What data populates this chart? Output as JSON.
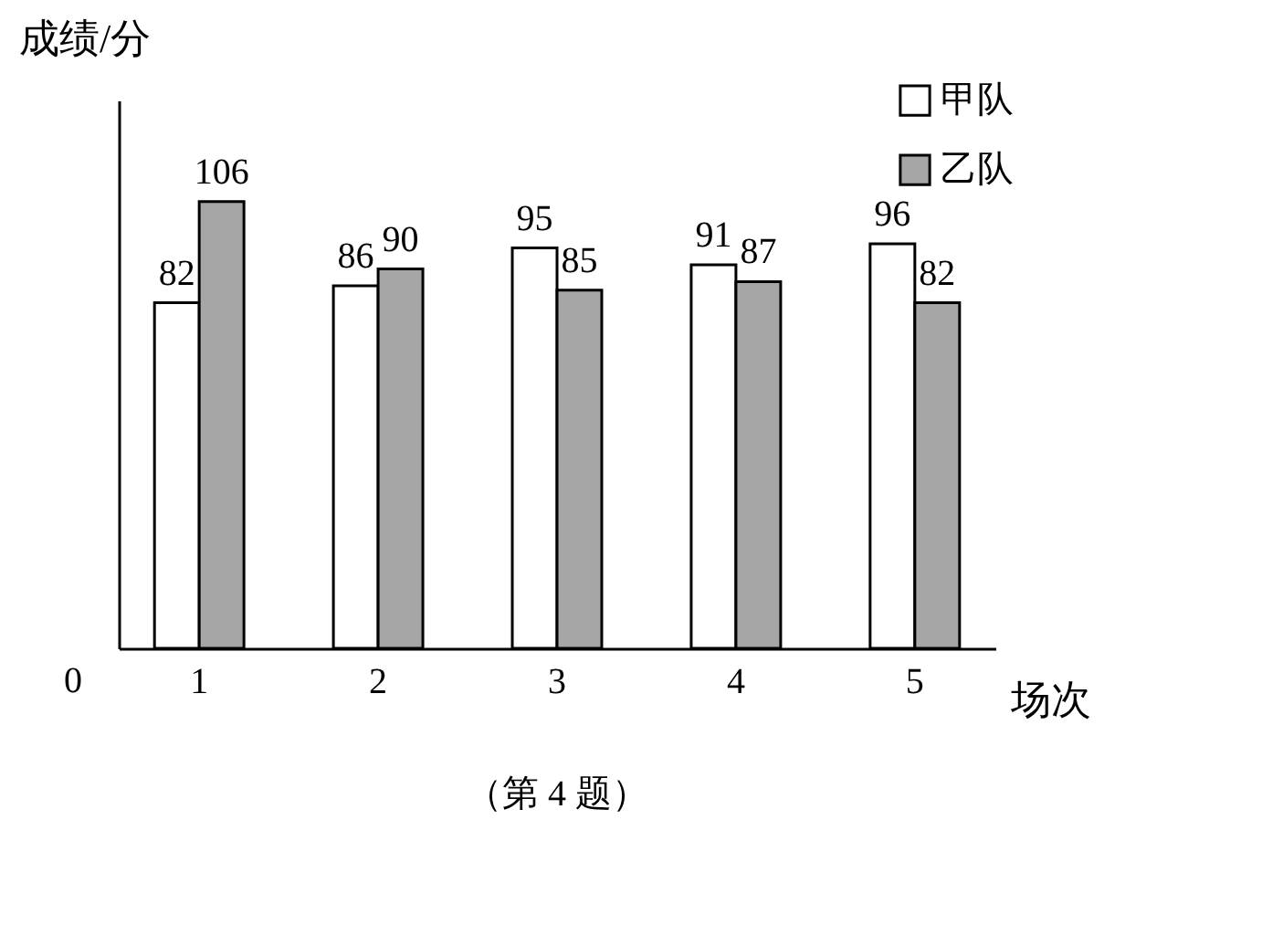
{
  "chart_data": {
    "type": "bar",
    "xlabel": "场次",
    "ylabel": "成绩/分",
    "categories": [
      "1",
      "2",
      "3",
      "4",
      "5"
    ],
    "series": [
      {
        "name": "甲队",
        "color": "#ffffff",
        "values": [
          82,
          86,
          95,
          91,
          96
        ]
      },
      {
        "name": "乙队",
        "color": "#a6a6a6",
        "values": [
          106,
          90,
          85,
          87,
          82
        ]
      }
    ],
    "ylim": [
      0,
      130
    ],
    "data_labels": true,
    "legend": "top right",
    "grid": false,
    "annotations": [
      "0",
      "（第 4 题）"
    ]
  }
}
